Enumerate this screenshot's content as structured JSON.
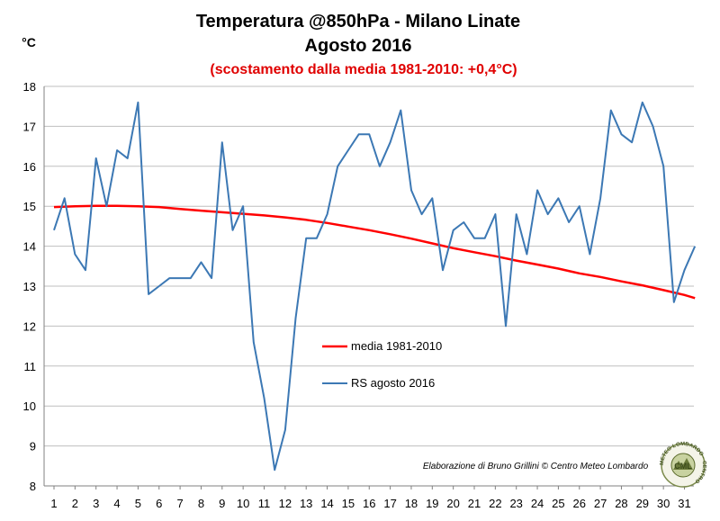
{
  "chart_data": {
    "type": "line",
    "title": "Temperatura @850hPa - Milano Linate",
    "title_line2": "Agosto 2016",
    "subtitle": "(scostamento dalla media 1981-2010: +0,4°C)",
    "ylabel": "°C",
    "ylim": [
      8,
      18
    ],
    "yticks": [
      "8",
      "9",
      "10",
      "11",
      "12",
      "13",
      "14",
      "15",
      "16",
      "17",
      "18"
    ],
    "xlim": [
      1,
      31.7
    ],
    "xticks": [
      "1",
      "2",
      "3",
      "4",
      "5",
      "6",
      "7",
      "8",
      "9",
      "10",
      "11",
      "12",
      "13",
      "14",
      "15",
      "16",
      "17",
      "18",
      "19",
      "20",
      "21",
      "22",
      "23",
      "24",
      "25",
      "26",
      "27",
      "28",
      "29",
      "30",
      "31"
    ],
    "grid": "horizontal",
    "series": [
      {
        "name": "media 1981-2010",
        "color": "#ff0000",
        "x": [
          1,
          2,
          3,
          4,
          5,
          6,
          7,
          8,
          9,
          10,
          11,
          12,
          13,
          14,
          15,
          16,
          17,
          18,
          19,
          20,
          21,
          22,
          23,
          24,
          25,
          26,
          27,
          28,
          29,
          30,
          31,
          31.5
        ],
        "y": [
          14.98,
          15.0,
          15.01,
          15.01,
          15.0,
          14.98,
          14.93,
          14.89,
          14.85,
          14.81,
          14.77,
          14.72,
          14.66,
          14.58,
          14.49,
          14.4,
          14.3,
          14.19,
          14.07,
          13.95,
          13.85,
          13.75,
          13.64,
          13.54,
          13.44,
          13.32,
          13.23,
          13.12,
          13.02,
          12.9,
          12.78,
          12.7
        ]
      },
      {
        "name": "RS agosto 2016",
        "color": "#3c78b4",
        "x": [
          1,
          1.5,
          2,
          2.5,
          3,
          3.5,
          4,
          4.5,
          5,
          5.5,
          6,
          6.5,
          7,
          7.5,
          8,
          8.5,
          9,
          9.5,
          10,
          10.5,
          11,
          11.5,
          12,
          12.5,
          13,
          13.5,
          14,
          14.5,
          15,
          15.5,
          16,
          16.5,
          17,
          17.5,
          18,
          18.5,
          19,
          19.5,
          20,
          20.5,
          21,
          21.5,
          22,
          22.5,
          23,
          23.5,
          24,
          24.5,
          25,
          25.5,
          26,
          26.5,
          27,
          27.5,
          28,
          28.5,
          29,
          29.5,
          30,
          30.5,
          31,
          31.5
        ],
        "y": [
          14.4,
          15.2,
          13.8,
          13.4,
          16.2,
          15.0,
          16.4,
          16.2,
          17.6,
          12.8,
          13.0,
          13.2,
          13.2,
          13.2,
          13.6,
          13.2,
          16.6,
          14.4,
          15.0,
          11.6,
          10.2,
          8.4,
          9.4,
          12.2,
          14.2,
          14.2,
          14.8,
          16.0,
          16.4,
          16.8,
          16.8,
          16.0,
          16.6,
          17.4,
          15.4,
          14.8,
          15.2,
          13.4,
          14.4,
          14.6,
          14.2,
          14.2,
          14.8,
          12.0,
          14.8,
          13.8,
          15.4,
          14.8,
          15.2,
          14.6,
          15.0,
          13.8,
          15.2,
          17.4,
          16.8,
          16.6,
          17.6,
          17.0,
          16.0,
          12.6,
          13.4,
          14.0
        ]
      }
    ]
  },
  "credit": "Elaborazione di Bruno Grillini © Centro Meteo Lombardo",
  "logo": {
    "ring_text": "METEO LOMBARDO · CENTRO",
    "inner_text": "CML"
  }
}
